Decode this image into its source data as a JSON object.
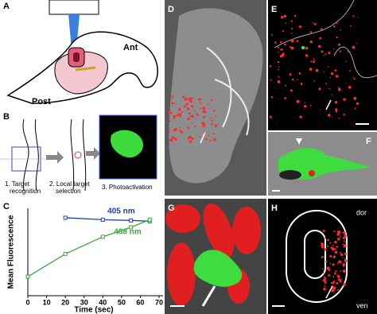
{
  "panel_letters": [
    "A",
    "B",
    "C",
    "D",
    "E",
    "F",
    "G",
    "H"
  ],
  "panel_a": {
    "ant": "Ant",
    "post": "Post"
  },
  "panel_b": {
    "steps": [
      [
        "1. Target",
        "recognition"
      ],
      [
        "2. Local target",
        "selection"
      ],
      [
        "3. Photoactivation"
      ]
    ]
  },
  "panel_h": {
    "dor": "dor",
    "ven": "ven"
  },
  "chart_data": {
    "type": "line",
    "x_label": "Time (sec)",
    "y_label": "Mean Fluorescence",
    "x": [
      0,
      20,
      40,
      55,
      65
    ],
    "series": [
      {
        "name": "405 nm",
        "color": "#1f3fae",
        "values": [
          null,
          205,
          200,
          198,
          196
        ]
      },
      {
        "name": "488 nm",
        "color": "#3aa83a",
        "values": [
          50,
          110,
          155,
          180,
          200
        ]
      }
    ],
    "xlim": [
      0,
      70
    ],
    "xticks": [
      0,
      10,
      20,
      30,
      40,
      50,
      60,
      70
    ],
    "ylim": [
      0,
      230
    ]
  }
}
